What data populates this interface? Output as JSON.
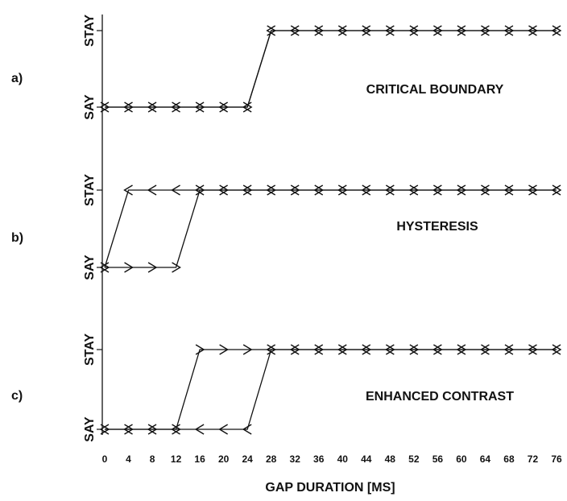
{
  "chart_data": [
    {
      "type": "line",
      "label": "a)",
      "annotation": "CRITICAL BOUNDARY",
      "x": [
        0,
        4,
        8,
        12,
        16,
        20,
        24,
        28,
        32,
        36,
        40,
        44,
        48,
        52,
        56,
        60,
        64,
        68,
        72,
        76
      ],
      "xlim": [
        0,
        76
      ],
      "ylim": [
        0,
        1
      ],
      "yticks": [
        {
          "value": 0,
          "label": "SAY"
        },
        {
          "value": 1,
          "label": "STAY"
        }
      ],
      "color": "#111111",
      "series": [
        {
          "marker": "right",
          "values": [
            0,
            0,
            0,
            0,
            0,
            0,
            0,
            1,
            1,
            1,
            1,
            1,
            1,
            1,
            1,
            1,
            1,
            1,
            1,
            1
          ]
        },
        {
          "marker": "left",
          "values": [
            0,
            0,
            0,
            0,
            0,
            0,
            0,
            1,
            1,
            1,
            1,
            1,
            1,
            1,
            1,
            1,
            1,
            1,
            1,
            1
          ]
        }
      ]
    },
    {
      "type": "line",
      "label": "b)",
      "annotation": "HYSTERESIS",
      "x": [
        0,
        4,
        8,
        12,
        16,
        20,
        24,
        28,
        32,
        36,
        40,
        44,
        48,
        52,
        56,
        60,
        64,
        68,
        72,
        76
      ],
      "xlim": [
        0,
        76
      ],
      "ylim": [
        0,
        1
      ],
      "yticks": [
        {
          "value": 0,
          "label": "SAY"
        },
        {
          "value": 1,
          "label": "STAY"
        }
      ],
      "color": "#111111",
      "series": [
        {
          "marker": "right",
          "values": [
            0,
            0,
            0,
            0,
            1,
            1,
            1,
            1,
            1,
            1,
            1,
            1,
            1,
            1,
            1,
            1,
            1,
            1,
            1,
            1
          ]
        },
        {
          "marker": "left",
          "values": [
            0,
            1,
            1,
            1,
            1,
            1,
            1,
            1,
            1,
            1,
            1,
            1,
            1,
            1,
            1,
            1,
            1,
            1,
            1,
            1
          ]
        }
      ]
    },
    {
      "type": "line",
      "label": "c)",
      "annotation": "ENHANCED CONTRAST",
      "x": [
        0,
        4,
        8,
        12,
        16,
        20,
        24,
        28,
        32,
        36,
        40,
        44,
        48,
        52,
        56,
        60,
        64,
        68,
        72,
        76
      ],
      "xlim": [
        0,
        76
      ],
      "ylim": [
        0,
        1
      ],
      "yticks": [
        {
          "value": 0,
          "label": "SAY"
        },
        {
          "value": 1,
          "label": "STAY"
        }
      ],
      "color": "#111111",
      "xticks": [
        0,
        4,
        8,
        12,
        16,
        20,
        24,
        28,
        32,
        36,
        40,
        44,
        48,
        52,
        56,
        60,
        64,
        68,
        72,
        76
      ],
      "xlabel": "GAP DURATION [MS]",
      "series": [
        {
          "marker": "right",
          "values": [
            0,
            0,
            0,
            0,
            1,
            1,
            1,
            1,
            1,
            1,
            1,
            1,
            1,
            1,
            1,
            1,
            1,
            1,
            1,
            1
          ]
        },
        {
          "marker": "left",
          "values": [
            0,
            0,
            0,
            0,
            0,
            0,
            0,
            1,
            1,
            1,
            1,
            1,
            1,
            1,
            1,
            1,
            1,
            1,
            1,
            1
          ]
        }
      ]
    }
  ]
}
